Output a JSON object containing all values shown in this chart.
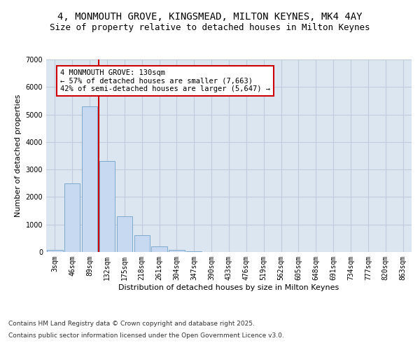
{
  "title_line1": "4, MONMOUTH GROVE, KINGSMEAD, MILTON KEYNES, MK4 4AY",
  "title_line2": "Size of property relative to detached houses in Milton Keynes",
  "xlabel": "Distribution of detached houses by size in Milton Keynes",
  "ylabel": "Number of detached properties",
  "categories": [
    "3sqm",
    "46sqm",
    "89sqm",
    "132sqm",
    "175sqm",
    "218sqm",
    "261sqm",
    "304sqm",
    "347sqm",
    "390sqm",
    "433sqm",
    "476sqm",
    "519sqm",
    "562sqm",
    "605sqm",
    "648sqm",
    "691sqm",
    "734sqm",
    "777sqm",
    "820sqm",
    "863sqm"
  ],
  "values": [
    70,
    2500,
    5300,
    3300,
    1300,
    600,
    200,
    70,
    30,
    0,
    0,
    0,
    0,
    0,
    0,
    0,
    0,
    0,
    0,
    0,
    0
  ],
  "bar_color": "#c6d9f0",
  "bar_edge_color": "#7faacc",
  "property_line_color": "#cc0000",
  "property_line_x": 2.5,
  "annotation_text": "4 MONMOUTH GROVE: 130sqm\n← 57% of detached houses are smaller (7,663)\n42% of semi-detached houses are larger (5,647) →",
  "annotation_box_color": "#ffffff",
  "annotation_box_edge_color": "#cc0000",
  "ylim": [
    0,
    7000
  ],
  "yticks": [
    0,
    1000,
    2000,
    3000,
    4000,
    5000,
    6000,
    7000
  ],
  "grid_color": "#c0ccdd",
  "plot_bg_color": "#dce6f1",
  "footer_line1": "Contains HM Land Registry data © Crown copyright and database right 2025.",
  "footer_line2": "Contains public sector information licensed under the Open Government Licence v3.0.",
  "title_fontsize": 10,
  "subtitle_fontsize": 9,
  "axis_label_fontsize": 8,
  "tick_fontsize": 7,
  "annotation_fontsize": 7.5,
  "footer_fontsize": 6.5
}
